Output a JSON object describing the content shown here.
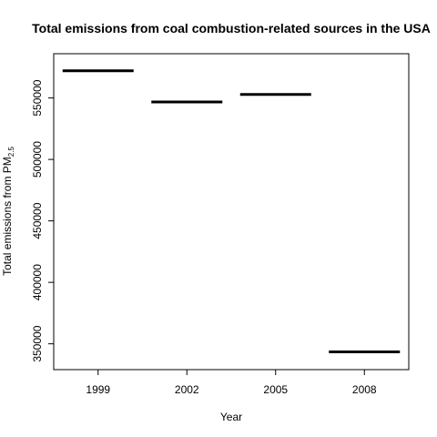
{
  "chart_data": {
    "type": "bar",
    "style": "horizontal-segment",
    "title": "Total emissions from coal combustion-related sources in the USA",
    "xlabel": "Year",
    "ylabel": "Total emissions from PM",
    "ylabel_subscript": "2.5",
    "categories": [
      "1999",
      "2002",
      "2005",
      "2008"
    ],
    "values": [
      572126,
      546789,
      552881,
      343432
    ],
    "ylim": [
      329000,
      586000
    ],
    "yticks": [
      350000,
      400000,
      450000,
      500000,
      550000
    ],
    "ytick_labels": [
      "350000",
      "400000",
      "450000",
      "500000",
      "550000"
    ],
    "grid": false,
    "legend": "none",
    "colors": {
      "segment": "#000000",
      "axis": "#000000",
      "background": "#ffffff"
    }
  }
}
